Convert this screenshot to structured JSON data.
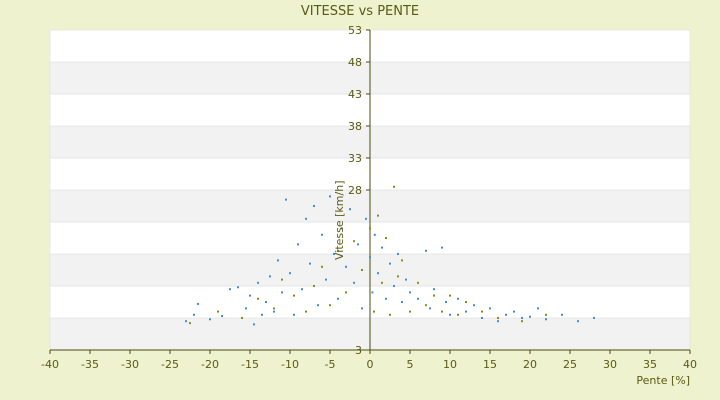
{
  "chart_data": {
    "type": "scatter",
    "title": "VITESSE vs PENTE",
    "xlabel": "Pente [%]",
    "ylabel": "Vitesse [km/h]",
    "xlim": [
      -40,
      40
    ],
    "ylim": [
      3,
      53
    ],
    "x_ticks": [
      -40,
      -35,
      -30,
      -25,
      -20,
      -15,
      -10,
      -5,
      0,
      5,
      10,
      15,
      20,
      25,
      30,
      35,
      40
    ],
    "y_ticks": [
      3,
      8,
      13,
      18,
      23,
      28,
      33,
      38,
      43,
      48,
      53
    ],
    "y_tick_labels_visible": [
      "28",
      "33",
      "38",
      "43",
      "48",
      "53",
      "3"
    ],
    "grid": "horizontal-bands",
    "legend": "none",
    "series": [
      {
        "color": "#3f8ed6",
        "points": [
          [
            -23.0,
            7.5
          ],
          [
            -22.0,
            8.5
          ],
          [
            -21.5,
            10.2
          ],
          [
            -20.0,
            7.8
          ],
          [
            -18.5,
            8.3
          ],
          [
            -17.5,
            12.5
          ],
          [
            -16.5,
            12.8
          ],
          [
            -15.5,
            9.5
          ],
          [
            -15.0,
            11.5
          ],
          [
            -14.5,
            7.0
          ],
          [
            -14.0,
            13.5
          ],
          [
            -13.5,
            8.5
          ],
          [
            -13.0,
            10.5
          ],
          [
            -12.5,
            14.5
          ],
          [
            -12.0,
            9.0
          ],
          [
            -11.5,
            17.0
          ],
          [
            -11.0,
            12.0
          ],
          [
            -10.5,
            26.5
          ],
          [
            -10.0,
            15.0
          ],
          [
            -9.5,
            8.5
          ],
          [
            -9.0,
            19.5
          ],
          [
            -8.5,
            12.5
          ],
          [
            -8.0,
            23.5
          ],
          [
            -7.5,
            16.5
          ],
          [
            -7.0,
            25.5
          ],
          [
            -6.5,
            10.0
          ],
          [
            -6.0,
            21.0
          ],
          [
            -5.5,
            14.0
          ],
          [
            -5.0,
            27.0
          ],
          [
            -4.5,
            18.0
          ],
          [
            -4.0,
            11.0
          ],
          [
            -3.5,
            22.0
          ],
          [
            -3.0,
            16.0
          ],
          [
            -2.5,
            25.0
          ],
          [
            -2.0,
            13.5
          ],
          [
            -1.5,
            19.5
          ],
          [
            -1.0,
            9.5
          ],
          [
            -0.5,
            23.5
          ],
          [
            0.0,
            17.5
          ],
          [
            0.3,
            12.0
          ],
          [
            0.6,
            21.0
          ],
          [
            1.0,
            15.0
          ],
          [
            1.5,
            19.0
          ],
          [
            2.0,
            11.0
          ],
          [
            2.5,
            16.5
          ],
          [
            3.0,
            13.0
          ],
          [
            3.5,
            18.0
          ],
          [
            4.0,
            10.5
          ],
          [
            4.5,
            14.0
          ],
          [
            5.0,
            12.0
          ],
          [
            6.0,
            11.0
          ],
          [
            7.0,
            18.5
          ],
          [
            7.5,
            9.5
          ],
          [
            8.0,
            12.5
          ],
          [
            9.0,
            19.0
          ],
          [
            9.5,
            10.5
          ],
          [
            10.0,
            8.5
          ],
          [
            11.0,
            11.0
          ],
          [
            12.0,
            9.0
          ],
          [
            13.0,
            10.0
          ],
          [
            14.0,
            8.0
          ],
          [
            15.0,
            9.5
          ],
          [
            16.0,
            7.5
          ],
          [
            17.0,
            8.5
          ],
          [
            18.0,
            9.0
          ],
          [
            19.0,
            8.0
          ],
          [
            20.0,
            8.2
          ],
          [
            21.0,
            9.5
          ],
          [
            22.0,
            7.8
          ],
          [
            24.0,
            8.5
          ],
          [
            26.0,
            7.5
          ],
          [
            28.0,
            8.0
          ]
        ]
      },
      {
        "color": "#8c8c14",
        "points": [
          [
            -22.5,
            7.2
          ],
          [
            -19.0,
            9.0
          ],
          [
            -16.0,
            8.0
          ],
          [
            -14.0,
            11.0
          ],
          [
            -12.0,
            9.5
          ],
          [
            -11.0,
            14.0
          ],
          [
            -9.5,
            11.5
          ],
          [
            -8.0,
            9.0
          ],
          [
            -7.0,
            13.0
          ],
          [
            -6.0,
            16.0
          ],
          [
            -5.0,
            10.0
          ],
          [
            -4.0,
            18.5
          ],
          [
            -3.0,
            12.0
          ],
          [
            -2.0,
            20.0
          ],
          [
            -1.0,
            15.5
          ],
          [
            0.0,
            22.0
          ],
          [
            0.5,
            9.0
          ],
          [
            1.0,
            24.0
          ],
          [
            1.5,
            13.5
          ],
          [
            2.0,
            20.5
          ],
          [
            2.5,
            8.5
          ],
          [
            3.0,
            28.5
          ],
          [
            3.5,
            14.5
          ],
          [
            4.0,
            17.0
          ],
          [
            5.0,
            9.0
          ],
          [
            6.0,
            13.5
          ],
          [
            7.0,
            10.0
          ],
          [
            8.0,
            11.5
          ],
          [
            9.0,
            9.0
          ],
          [
            10.0,
            11.5
          ],
          [
            11.0,
            8.5
          ],
          [
            12.0,
            10.5
          ],
          [
            14.0,
            9.0
          ],
          [
            16.0,
            8.0
          ],
          [
            19.0,
            7.5
          ],
          [
            22.0,
            8.5
          ]
        ]
      }
    ]
  }
}
